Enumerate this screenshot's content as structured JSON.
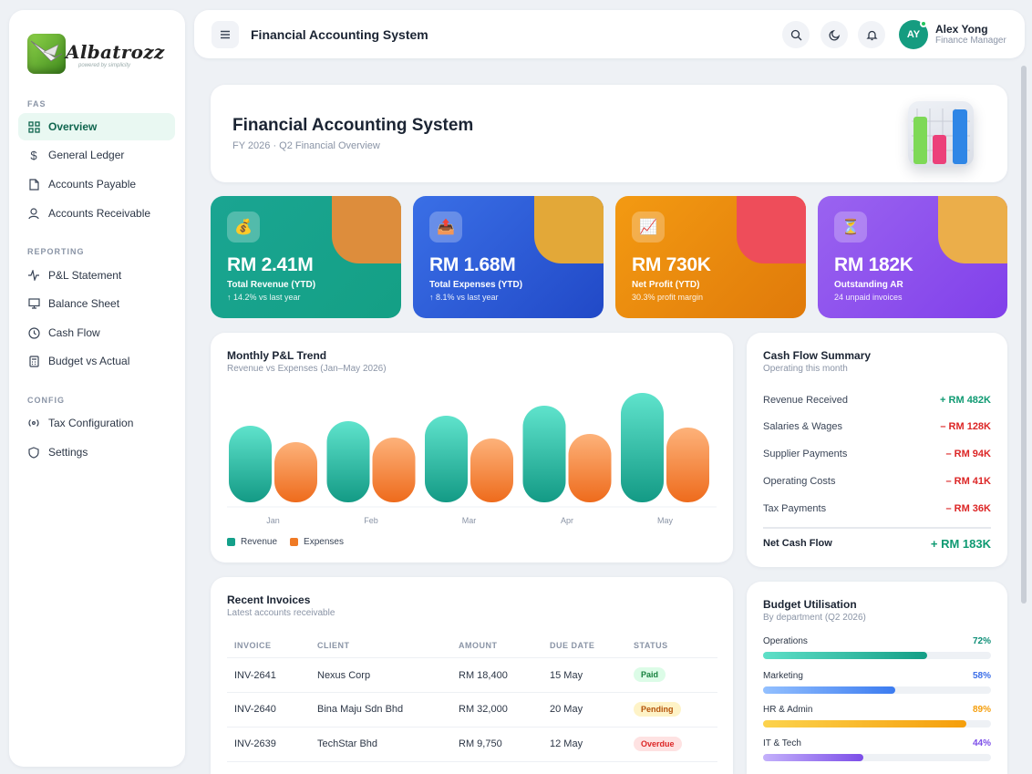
{
  "brand": {
    "name": "Albatrozz",
    "tagline": "powered by simplicity"
  },
  "sidebar": {
    "sections": [
      {
        "label": "FAS",
        "items": [
          {
            "label": "Overview",
            "icon": "grid-icon",
            "active": true
          },
          {
            "label": "General Ledger",
            "icon": "dollar-icon"
          },
          {
            "label": "Accounts Payable",
            "icon": "document-icon"
          },
          {
            "label": "Accounts Receivable",
            "icon": "user-icon"
          }
        ]
      },
      {
        "label": "REPORTING",
        "items": [
          {
            "label": "P&L Statement",
            "icon": "activity-icon"
          },
          {
            "label": "Balance Sheet",
            "icon": "monitor-icon"
          },
          {
            "label": "Cash Flow",
            "icon": "clock-icon"
          },
          {
            "label": "Budget vs Actual",
            "icon": "calculator-icon"
          }
        ]
      },
      {
        "label": "CONFIG",
        "items": [
          {
            "label": "Tax Configuration",
            "icon": "broadcast-icon"
          },
          {
            "label": "Settings",
            "icon": "shield-icon"
          }
        ]
      }
    ]
  },
  "topbar": {
    "title": "Financial Accounting System",
    "user": {
      "initials": "AY",
      "name": "Alex Yong",
      "role": "Finance Manager"
    }
  },
  "hero": {
    "title": "Financial Accounting System",
    "subtitle": "FY 2026 · Q2 Financial Overview"
  },
  "kpis": [
    {
      "icon": "💰",
      "value": "RM 2.41M",
      "label": "Total Revenue (YTD)",
      "note": "↑ 14.2% vs last year",
      "bg_from": "#1aa592",
      "bg_to": "#14a085",
      "blob": "#dd8d3c"
    },
    {
      "icon": "📤",
      "value": "RM 1.68M",
      "label": "Total Expenses (YTD)",
      "note": "↑ 8.1% vs last year",
      "bg_from": "#3a6fe6",
      "bg_to": "#2149c7",
      "blob": "#e3a838"
    },
    {
      "icon": "📈",
      "value": "RM 730K",
      "label": "Net Profit (YTD)",
      "note": "30.3% profit margin",
      "bg_from": "#f39a12",
      "bg_to": "#e07a0a",
      "blob": "#ee4d5a"
    },
    {
      "icon": "⏳",
      "value": "RM 182K",
      "label": "Outstanding AR",
      "note": "24 unpaid invoices",
      "bg_from": "#9a63f0",
      "bg_to": "#8140ea",
      "blob": "#ebae4a"
    }
  ],
  "pnl": {
    "title": "Monthly P&L Trend",
    "subtitle": "Revenue vs Expenses (Jan–May 2026)",
    "legend": {
      "revenue": "Revenue",
      "expenses": "Expenses"
    }
  },
  "chart_data": {
    "type": "bar",
    "title": "Monthly P&L Trend",
    "subtitle": "Revenue vs Expenses (Jan–May 2026)",
    "categories": [
      "Jan",
      "Feb",
      "Mar",
      "Apr",
      "May"
    ],
    "series": [
      {
        "name": "Revenue",
        "values": [
          84,
          89,
          95,
          106,
          120
        ],
        "color": "#14a08a"
      },
      {
        "name": "Expenses",
        "values": [
          66,
          71,
          70,
          75,
          82
        ],
        "color": "#ef7a25"
      }
    ],
    "ylim": [
      0,
      130
    ],
    "grid": false,
    "legend": "bottom-left"
  },
  "cashflow": {
    "title": "Cash Flow Summary",
    "subtitle": "Operating this month",
    "rows": [
      {
        "label": "Revenue Received",
        "amount": "+ RM 482K",
        "sign": "pos"
      },
      {
        "label": "Salaries & Wages",
        "amount": "– RM 128K",
        "sign": "neg"
      },
      {
        "label": "Supplier Payments",
        "amount": "– RM 94K",
        "sign": "neg"
      },
      {
        "label": "Operating Costs",
        "amount": "– RM 41K",
        "sign": "neg"
      },
      {
        "label": "Tax Payments",
        "amount": "– RM 36K",
        "sign": "neg"
      }
    ],
    "net_label": "Net Cash Flow",
    "net_amount": "+ RM 183K"
  },
  "invoices": {
    "title": "Recent Invoices",
    "subtitle": "Latest accounts receivable",
    "columns": [
      "INVOICE",
      "CLIENT",
      "AMOUNT",
      "DUE DATE",
      "STATUS"
    ],
    "rows": [
      {
        "invoice": "INV-2641",
        "client": "Nexus Corp",
        "amount": "RM 18,400",
        "due": "15 May",
        "status": "Paid",
        "status_bg": "#dcfce7",
        "status_fg": "#15803d"
      },
      {
        "invoice": "INV-2640",
        "client": "Bina Maju Sdn Bhd",
        "amount": "RM 32,000",
        "due": "20 May",
        "status": "Pending",
        "status_bg": "#fef3c7",
        "status_fg": "#b45309"
      },
      {
        "invoice": "INV-2639",
        "client": "TechStar Bhd",
        "amount": "RM 9,750",
        "due": "12 May",
        "status": "Overdue",
        "status_bg": "#fee2e2",
        "status_fg": "#dc2626"
      }
    ]
  },
  "budget": {
    "title": "Budget Utilisation",
    "subtitle": "By department (Q2 2026)",
    "items": [
      {
        "label": "Operations",
        "pct": "72%",
        "value": 72,
        "from": "#5ee0c8",
        "to": "#149e86",
        "text": "#0f8f78"
      },
      {
        "label": "Marketing",
        "pct": "58%",
        "value": 58,
        "from": "#93c0ff",
        "to": "#3b7bf0",
        "text": "#3b6ee8"
      },
      {
        "label": "HR & Admin",
        "pct": "89%",
        "value": 89,
        "from": "#fcd34d",
        "to": "#f59e0b",
        "text": "#f59e0b"
      },
      {
        "label": "IT & Tech",
        "pct": "44%",
        "value": 44,
        "from": "#c4b1fb",
        "to": "#7c4ee8",
        "text": "#7c4ee8"
      }
    ]
  }
}
